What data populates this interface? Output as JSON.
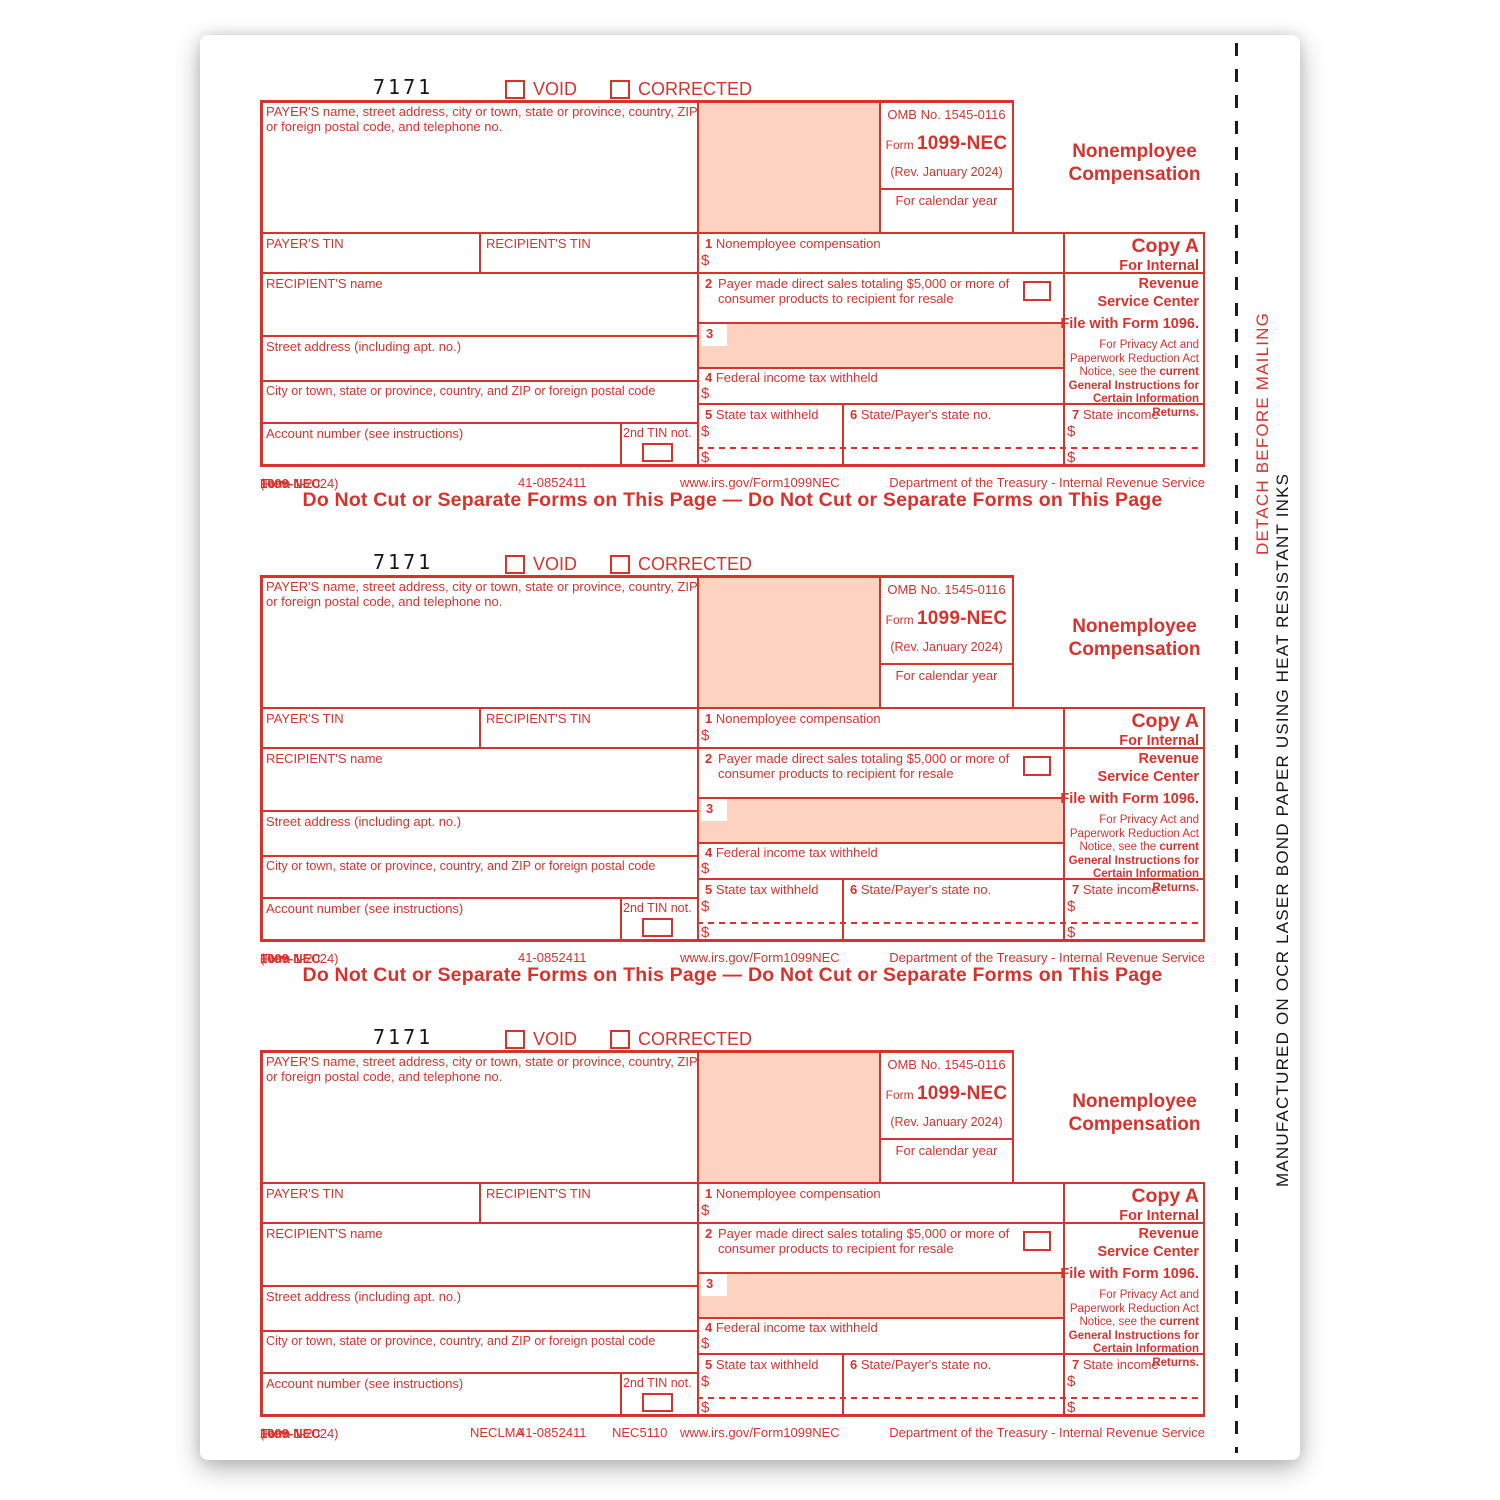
{
  "edge": {
    "detach": "DETACH BEFORE MAILING",
    "manufactured": "MANUFACTURED ON OCR LASER BOND PAPER USING HEAT RESISTANT INKS"
  },
  "colors": {
    "accent_red": "#d8322d",
    "shaded_box": "#fcd3c1"
  },
  "form": {
    "print_number": "7171",
    "void_label": "VOID",
    "corrected_label": "CORRECTED",
    "payer_info_label": "PAYER'S name, street address, city or town, state or province, country, ZIP or foreign postal code, and telephone no.",
    "omb": {
      "omb_no": "OMB No. 1545-0116",
      "form_word": "Form",
      "form_number": "1099-NEC",
      "rev": "(Rev. January 2024)",
      "calendar": "For calendar year"
    },
    "title_line1": "Nonemployee",
    "title_line2": "Compensation",
    "payer_tin": "PAYER'S TIN",
    "recipient_tin": "RECIPIENT'S TIN",
    "recipient_name": "RECIPIENT'S name",
    "street": "Street address (including apt. no.)",
    "city": "City or town, state or province, country, and ZIP or foreign postal code",
    "account": "Account number (see instructions)",
    "tin_not": "2nd TIN not.",
    "box1_num": "1",
    "box1_label": "Nonemployee compensation",
    "box2_num": "2",
    "box2_label": "Payer made direct sales totaling $5,000 or more of consumer products to recipient for resale",
    "box3_num": "3",
    "box4_num": "4",
    "box4_label": "Federal income tax withheld",
    "box5_num": "5",
    "box5_label": "State tax withheld",
    "box6_num": "6",
    "box6_label": "State/Payer's state no.",
    "box7_num": "7",
    "box7_label": "State income",
    "dollar": "$",
    "copy_a": {
      "title": "Copy A",
      "line1": "For Internal Revenue",
      "line2": "Service Center",
      "line3": "File with Form 1096.",
      "privacy_regular": "For Privacy Act and Paperwork Reduction Act Notice, see the ",
      "privacy_bold": "current General Instructions for Certain Information Returns."
    }
  },
  "forms": [
    {
      "footer": {
        "form_word": "Form",
        "number": "1099-NEC",
        "rev": "(Rev. 1-2024)",
        "code_left": "",
        "print_code": "41-0852411",
        "code_right": "",
        "url": "www.irs.gov/Form1099NEC",
        "dept": "Department of the Treasury - Internal Revenue Service",
        "do_not_cut": "Do Not Cut or Separate Forms on This Page — Do Not Cut or Separate Forms on This Page"
      }
    },
    {
      "footer": {
        "form_word": "Form",
        "number": "1099-NEC",
        "rev": "(Rev. 1-2024)",
        "code_left": "",
        "print_code": "41-0852411",
        "code_right": "",
        "url": "www.irs.gov/Form1099NEC",
        "dept": "Department of the Treasury - Internal Revenue Service",
        "do_not_cut": "Do Not Cut or Separate Forms on This Page — Do Not Cut or Separate Forms on This Page"
      }
    },
    {
      "footer": {
        "form_word": "Form",
        "number": "1099-NEC",
        "rev": "(Rev. 1-2024)",
        "code_left": "NECLMA",
        "print_code": "41-0852411",
        "code_right": "NEC5110",
        "url": "www.irs.gov/Form1099NEC",
        "dept": "Department of the Treasury - Internal Revenue Service",
        "do_not_cut": ""
      }
    }
  ]
}
